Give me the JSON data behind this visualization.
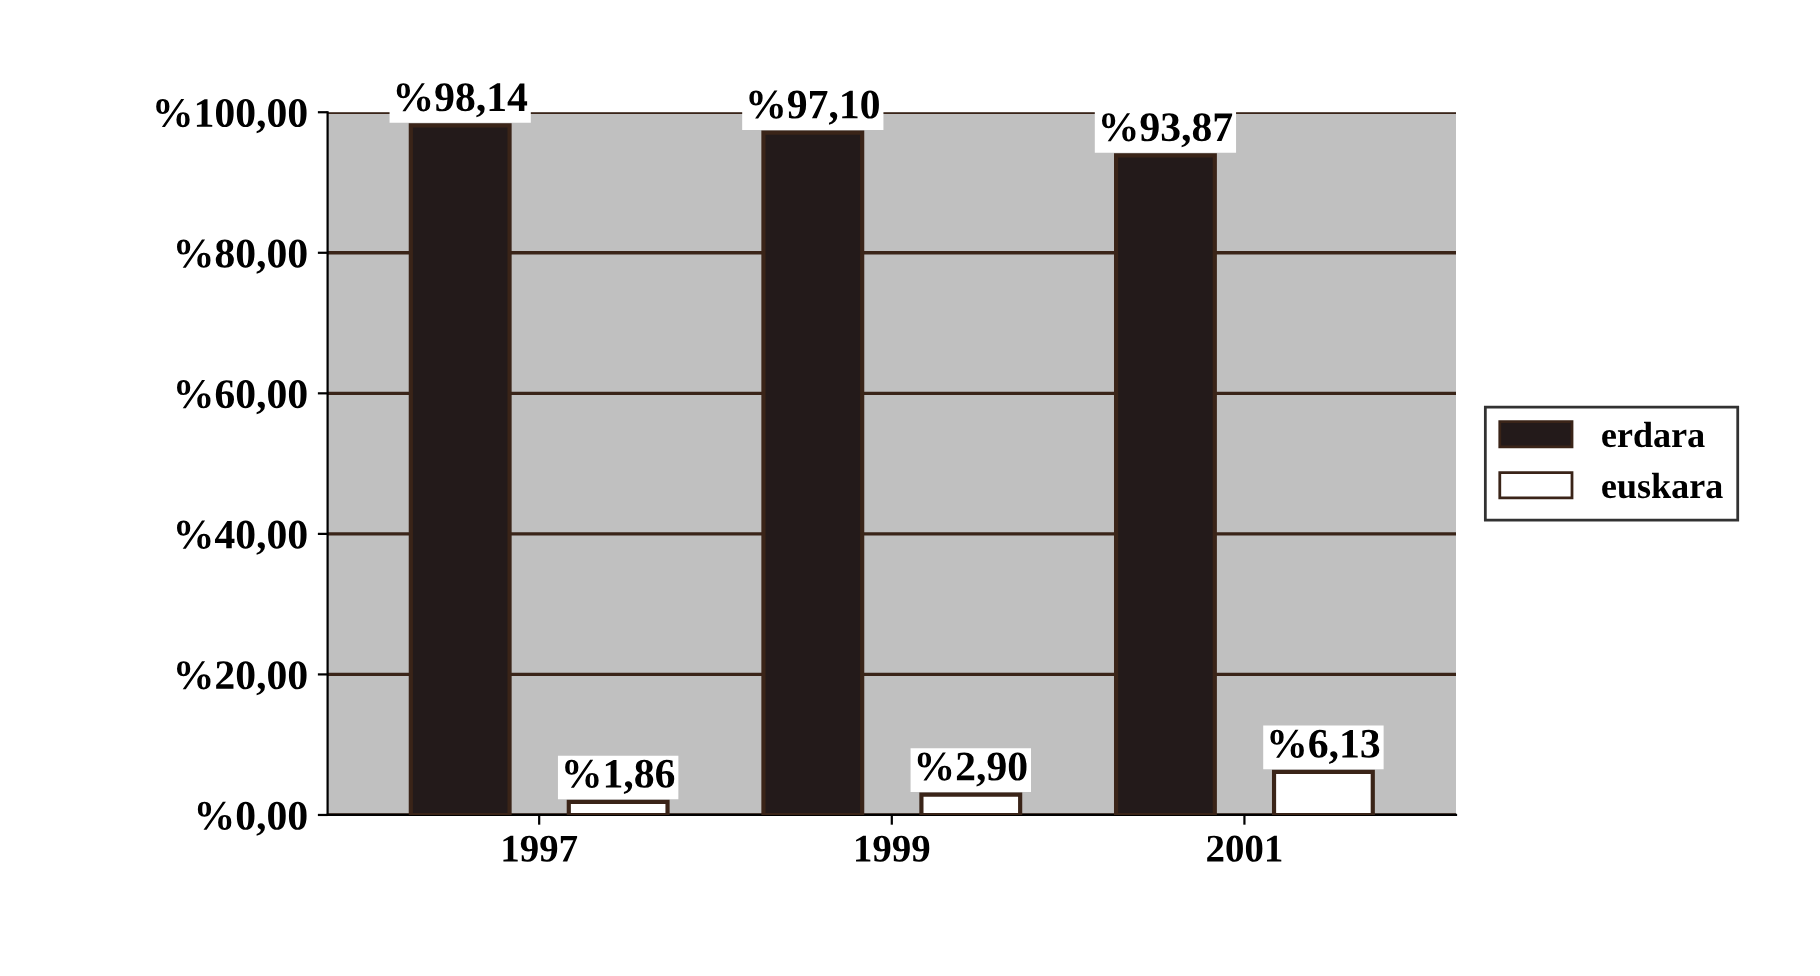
{
  "chart_data": {
    "type": "bar",
    "categories": [
      "1997",
      "1999",
      "2001"
    ],
    "series": [
      {
        "name": "erdara",
        "color": "#231a1a",
        "values": [
          98.14,
          97.1,
          93.87
        ],
        "value_labels": [
          "%98,14",
          "%97,10",
          "%93,87"
        ]
      },
      {
        "name": "euskara",
        "color": "#ffffff",
        "values": [
          1.86,
          2.9,
          6.13
        ],
        "value_labels": [
          "%1,86",
          "%2,90",
          "%6,13"
        ]
      }
    ],
    "ylim": [
      0,
      100
    ],
    "yticks": [
      {
        "value": 0,
        "label": "%0,00"
      },
      {
        "value": 20,
        "label": "%20,00"
      },
      {
        "value": 40,
        "label": "%40,00"
      },
      {
        "value": 60,
        "label": "%60,00"
      },
      {
        "value": 80,
        "label": "%80,00"
      },
      {
        "value": 100,
        "label": "%100,00"
      }
    ],
    "grid": "y",
    "legend": "right"
  }
}
